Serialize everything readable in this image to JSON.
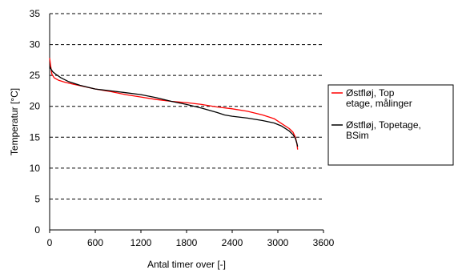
{
  "chart_data": {
    "type": "line",
    "xlabel": "Antal timer over [-]",
    "ylabel": "Temperatur [°C]",
    "xlim": [
      0,
      3600
    ],
    "ylim": [
      0,
      35
    ],
    "x_ticks": [
      "0",
      "600",
      "1200",
      "1800",
      "2400",
      "3000",
      "3600"
    ],
    "y_ticks": [
      "0",
      "5",
      "10",
      "15",
      "20",
      "25",
      "30",
      "35"
    ],
    "grid": "horizontal dashed",
    "legend_position": "right",
    "series": [
      {
        "name": "Østfløj, Top etage, målinger",
        "color": "#ff0000",
        "x": [
          0,
          10,
          30,
          60,
          120,
          200,
          300,
          450,
          600,
          800,
          1000,
          1200,
          1400,
          1600,
          1800,
          2000,
          2200,
          2400,
          2600,
          2800,
          2950,
          3050,
          3150,
          3200,
          3230,
          3250,
          3260
        ],
        "y": [
          27.8,
          26.8,
          25.2,
          24.6,
          24.2,
          23.9,
          23.6,
          23.2,
          22.8,
          22.4,
          21.9,
          21.5,
          21.1,
          20.8,
          20.6,
          20.3,
          19.9,
          19.6,
          19.2,
          18.6,
          18.0,
          17.2,
          16.4,
          15.8,
          15.0,
          14.0,
          13.0
        ]
      },
      {
        "name": "Østfløj, Topetage, BSim",
        "color": "#000000",
        "x": [
          0,
          15,
          40,
          80,
          150,
          250,
          400,
          600,
          800,
          1000,
          1200,
          1400,
          1600,
          1800,
          2000,
          2200,
          2300,
          2400,
          2600,
          2800,
          2950,
          3050,
          3150,
          3200,
          3230,
          3250,
          3260
        ],
        "y": [
          26.5,
          26.1,
          25.6,
          25.2,
          24.6,
          24.0,
          23.4,
          22.8,
          22.5,
          22.2,
          21.9,
          21.4,
          20.8,
          20.3,
          19.7,
          19.0,
          18.6,
          18.4,
          18.1,
          17.7,
          17.3,
          16.8,
          16.0,
          15.4,
          14.8,
          14.0,
          13.5
        ]
      }
    ],
    "legend": [
      {
        "lines": [
          "Østfløj, Top",
          "etage, målinger"
        ],
        "color": "#ff0000"
      },
      {
        "lines": [
          "Østfløj, Topetage,",
          "BSim"
        ],
        "color": "#000000"
      }
    ]
  }
}
